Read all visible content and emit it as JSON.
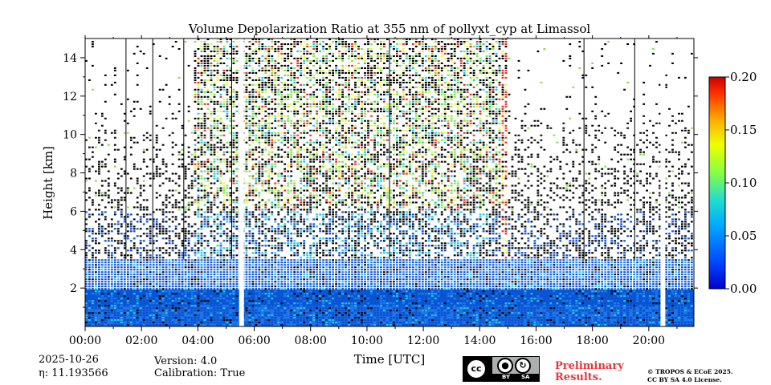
{
  "chart_data": {
    "type": "heatmap",
    "title": "Volume Depolarization Ratio at 355 nm of pollyxt_cyp at Limassol",
    "xlabel": "Time [UTC]",
    "ylabel": "Height [km]",
    "xlim": [
      0,
      21.6
    ],
    "ylim": [
      0,
      15
    ],
    "x_tick_values": [
      0,
      2,
      4,
      6,
      8,
      10,
      12,
      14,
      16,
      18,
      20
    ],
    "x_tick_labels": [
      "00:00",
      "02:00",
      "04:00",
      "06:00",
      "08:00",
      "10:00",
      "12:00",
      "14:00",
      "16:00",
      "18:00",
      "20:00"
    ],
    "y_tick_values": [
      2,
      4,
      6,
      8,
      10,
      12,
      14
    ],
    "y_tick_labels": [
      "2",
      "4",
      "6",
      "8",
      "10",
      "12",
      "14"
    ],
    "colorbar": {
      "range": [
        0.0,
        0.2
      ],
      "tick_values": [
        0.0,
        0.05,
        0.1,
        0.15,
        0.2
      ],
      "tick_labels": [
        "0.00",
        "0.05",
        "0.10",
        "0.15",
        "0.20"
      ],
      "colormap": "jet"
    },
    "data_gaps_hours": [
      5.55,
      20.5
    ],
    "dense_signal_hours": [
      3.9,
      15.0
    ],
    "depolarization_peak_hours": [
      14.8,
      15.3
    ],
    "boundary_layer_top_km": 3.5
  },
  "footer": {
    "date": "2025-10-26",
    "eta": "η: 11.193566",
    "version": "Version: 4.0",
    "calibration": "Calibration: True",
    "prelim_line1": "Preliminary",
    "prelim_line2": "Results.",
    "copyright_line1": "© TROPOS & ECoE 2025.",
    "copyright_line2": "CC BY SA 4.0 License."
  },
  "license_badge": {
    "cc": "cc",
    "by": "BY",
    "sa": "SA",
    "icon_names": [
      "cc-icon",
      "by-person-icon",
      "sa-share-alike-icon"
    ]
  }
}
